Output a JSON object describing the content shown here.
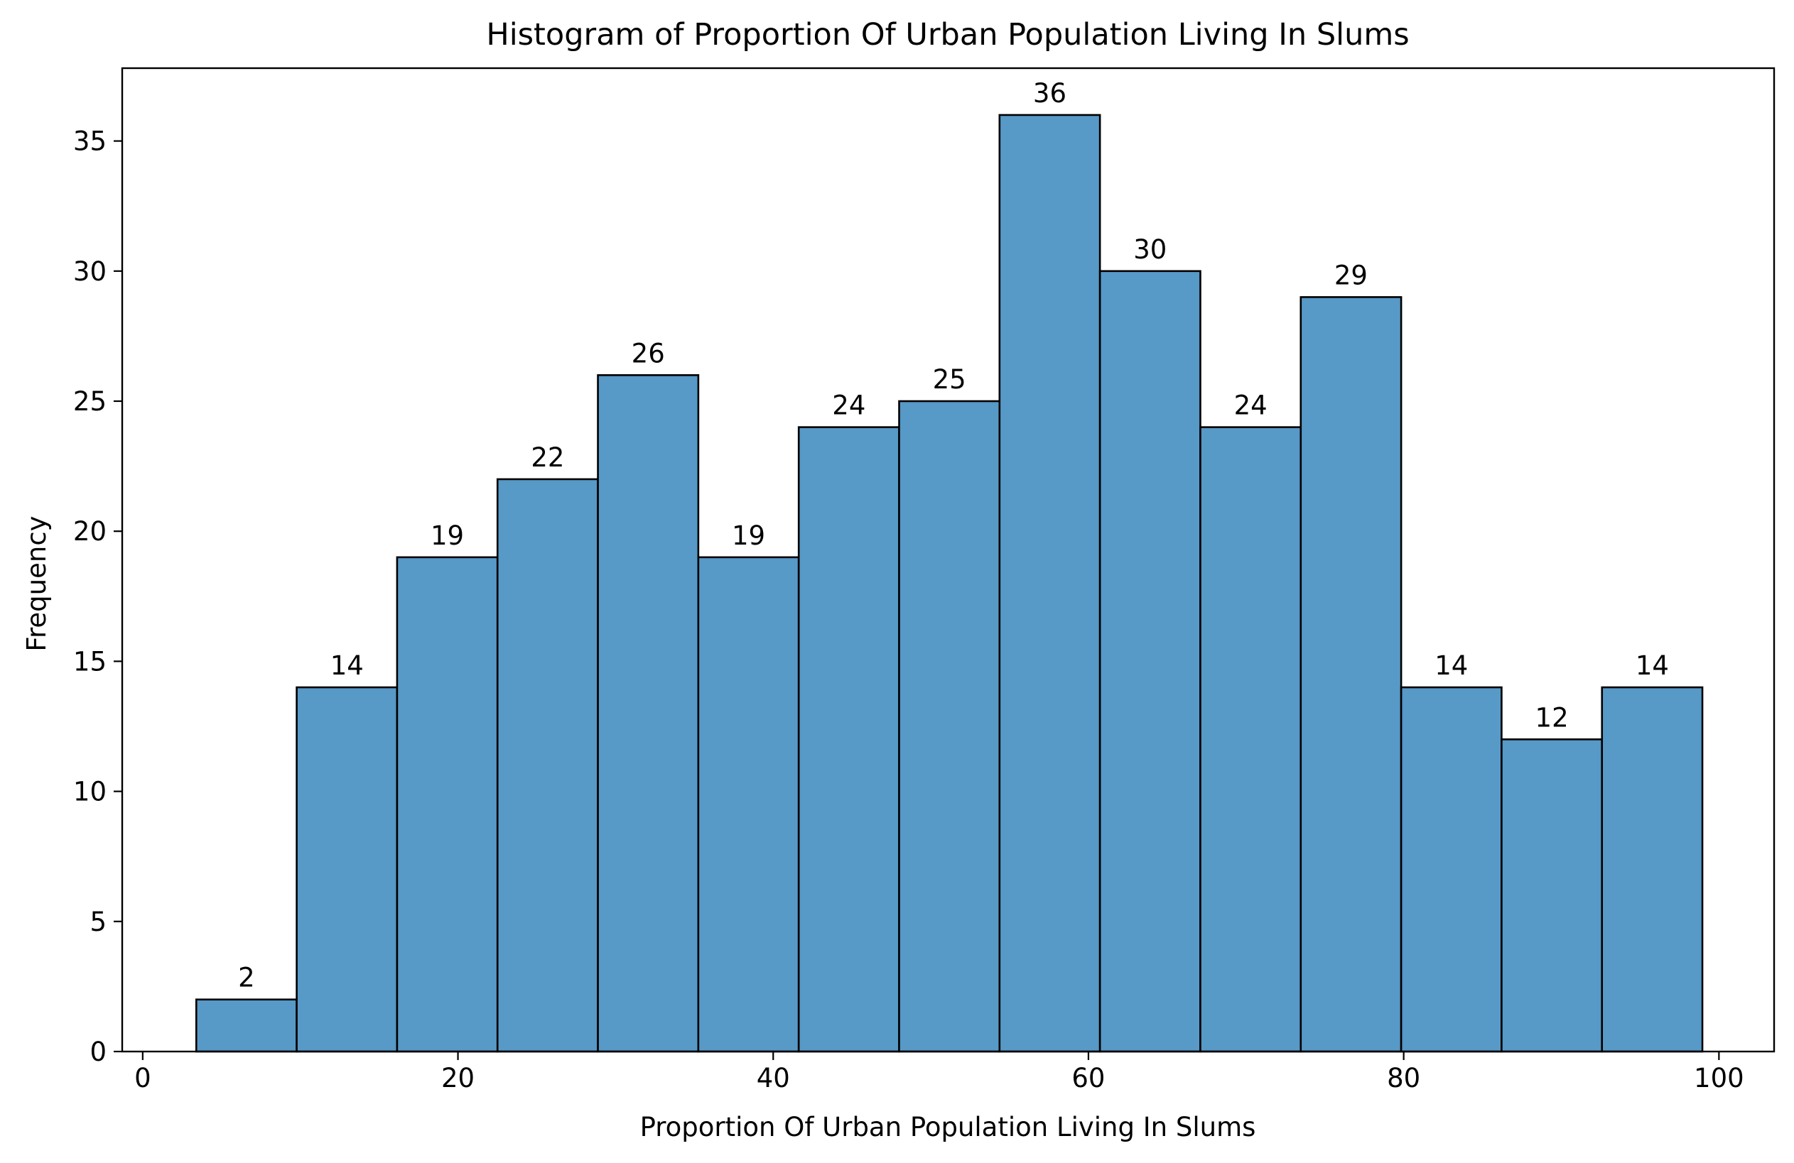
{
  "chart_data": {
    "type": "bar",
    "title": "Histogram of Proportion Of Urban Population Living In Slums",
    "xlabel": "Proportion Of Urban Population Living In Slums",
    "ylabel": "Frequency",
    "xlim": [
      -1.3,
      103.5
    ],
    "ylim": [
      0,
      37.8
    ],
    "xticks": [
      0,
      20,
      40,
      60,
      80,
      100
    ],
    "yticks": [
      0,
      5,
      10,
      15,
      20,
      25,
      30,
      35
    ],
    "bin_edges": [
      3.4,
      9.77,
      16.14,
      22.51,
      28.88,
      35.25,
      41.62,
      47.99,
      54.36,
      60.73,
      67.1,
      73.47,
      79.84,
      86.21,
      92.58,
      98.95
    ],
    "values": [
      2,
      14,
      19,
      22,
      26,
      19,
      24,
      25,
      36,
      30,
      24,
      29,
      14,
      12,
      14
    ],
    "bar_color": "#5799c7",
    "edge_color": "#000000",
    "grid": false,
    "data_labels": true
  }
}
